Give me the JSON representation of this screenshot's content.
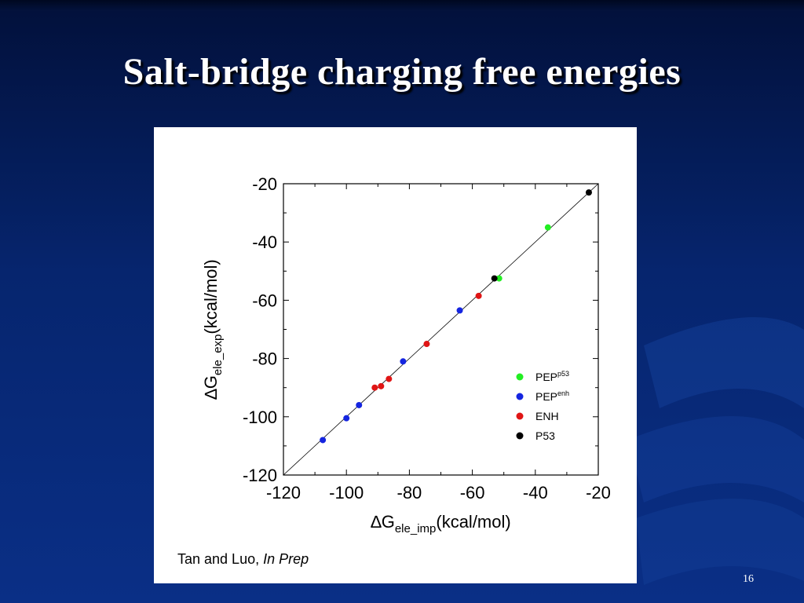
{
  "slide": {
    "title": "Salt-bridge charging free energies",
    "page_number": "16",
    "citation_authors": "Tan and Luo,",
    "citation_status": "In Prep"
  },
  "colors": {
    "PEP_p53": "#22ee22",
    "PEP_enh": "#1525e0",
    "ENH": "#e01515",
    "P53": "#000000",
    "background_dark": "#02103a",
    "background_light": "#0a2f86"
  },
  "chart_data": {
    "type": "scatter",
    "title": "",
    "xlabel": {
      "delta": "∆",
      "main": "G",
      "sub": "ele_imp",
      "unit": "(kcal/mol)"
    },
    "ylabel": {
      "delta": "∆",
      "main": "G",
      "sub": "ele_exp",
      "unit": "(kcal/mol)"
    },
    "xlim": [
      -120,
      -20
    ],
    "ylim": [
      -120,
      -20
    ],
    "xticks": [
      "-120",
      "-100",
      "-80",
      "-60",
      "-40",
      "-20"
    ],
    "yticks": [
      "-120",
      "-100",
      "-80",
      "-60",
      "-40",
      "-20"
    ],
    "diagonal_line": true,
    "grid": false,
    "legend_position": "bottom-right",
    "series": [
      {
        "name": "PEP",
        "superscript": "p53",
        "color_key": "PEP_p53",
        "points": [
          [
            -36,
            -35
          ],
          [
            -51.5,
            -52.5
          ]
        ]
      },
      {
        "name": "PEP",
        "superscript": "enh",
        "color_key": "PEP_enh",
        "points": [
          [
            -107.5,
            -108
          ],
          [
            -100,
            -100.5
          ],
          [
            -96,
            -96
          ],
          [
            -82,
            -81
          ],
          [
            -64,
            -63.5
          ]
        ]
      },
      {
        "name": "ENH",
        "superscript": "",
        "color_key": "ENH",
        "points": [
          [
            -91,
            -90
          ],
          [
            -89,
            -89.5
          ],
          [
            -86.5,
            -87
          ],
          [
            -74.5,
            -75
          ],
          [
            -58,
            -58.5
          ]
        ]
      },
      {
        "name": "P53",
        "superscript": "",
        "color_key": "P53",
        "points": [
          [
            -23,
            -23
          ],
          [
            -53,
            -52.5
          ]
        ]
      }
    ]
  }
}
